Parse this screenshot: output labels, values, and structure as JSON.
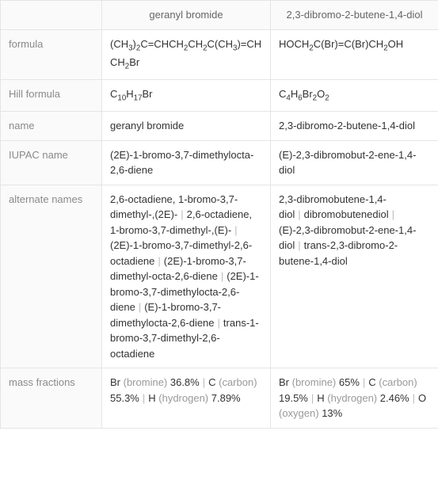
{
  "columns": {
    "col1": "geranyl bromide",
    "col2": "2,3-dibromo-2-butene-1,4-diol"
  },
  "rows": {
    "formula": {
      "label": "formula",
      "col1_html": "(CH<sub>3</sub>)<sub>2</sub>C=CHCH<sub>2</sub>CH<sub>2</sub>C(CH<sub>3</sub>)=CHCH<sub>2</sub>Br",
      "col2_html": "HOCH<sub>2</sub>C(Br)=C(Br)CH<sub>2</sub>OH"
    },
    "hill": {
      "label": "Hill formula",
      "col1_html": "C<sub>10</sub>H<sub>17</sub>Br",
      "col2_html": "C<sub>4</sub>H<sub>6</sub>Br<sub>2</sub>O<sub>2</sub>"
    },
    "name": {
      "label": "name",
      "col1": "geranyl bromide",
      "col2": "2,3-dibromo-2-butene-1,4-diol"
    },
    "iupac": {
      "label": "IUPAC name",
      "col1": "(2E)-1-bromo-3,7-dimethylocta-2,6-diene",
      "col2": "(E)-2,3-dibromobut-2-ene-1,4-diol"
    },
    "alternate": {
      "label": "alternate names",
      "col1_items": [
        "2,6-octadiene, 1-bromo-3,7-dimethyl-,(2E)-",
        "2,6-octadiene, 1-bromo-3,7-dimethyl-,(E)-",
        "(2E)-1-bromo-3,7-dimethyl-2,6-octadiene",
        "(2E)-1-bromo-3,7-dimethyl-octa-2,6-diene",
        "(2E)-1-bromo-3,7-dimethylocta-2,6-diene",
        "(E)-1-bromo-3,7-dimethylocta-2,6-diene",
        "trans-1-bromo-3,7-dimethyl-2,6-octadiene"
      ],
      "col2_items": [
        "2,3-dibromobutene-1,4-diol",
        "dibromobutenediol",
        "(E)-2,3-dibromobut-2-ene-1,4-diol",
        "trans-2,3-dibromo-2-butene-1,4-diol"
      ]
    },
    "mass": {
      "label": "mass fractions",
      "col1_items": [
        {
          "el": "Br",
          "name": "bromine",
          "val": "36.8%"
        },
        {
          "el": "C",
          "name": "carbon",
          "val": "55.3%"
        },
        {
          "el": "H",
          "name": "hydrogen",
          "val": "7.89%"
        }
      ],
      "col2_items": [
        {
          "el": "Br",
          "name": "bromine",
          "val": "65%"
        },
        {
          "el": "C",
          "name": "carbon",
          "val": "19.5%"
        },
        {
          "el": "H",
          "name": "hydrogen",
          "val": "2.46%"
        },
        {
          "el": "O",
          "name": "oxygen",
          "val": "13%"
        }
      ]
    }
  },
  "colors": {
    "border": "#e5e5e5",
    "label_text": "#8a8a8a",
    "cell_text": "#333",
    "gray_text": "#999",
    "background": "#ffffff"
  }
}
